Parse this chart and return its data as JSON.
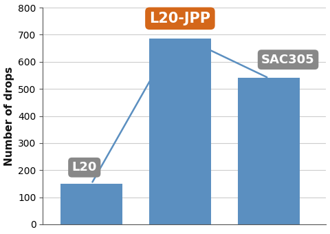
{
  "categories": [
    "L20",
    "L20-JPP",
    "SAC305"
  ],
  "values": [
    150,
    685,
    540
  ],
  "bar_color": "#5b8fc0",
  "ylabel": "Number of drops",
  "ylim": [
    0,
    800
  ],
  "yticks": [
    0,
    100,
    200,
    300,
    400,
    500,
    600,
    700,
    800
  ],
  "label_texts": [
    "L20",
    "L20-JPP",
    "SAC305"
  ],
  "label_bg_colors": [
    "#888888",
    "#d4671a",
    "#888888"
  ],
  "label_text_color": "#ffffff",
  "line_color": "#5b8fc0",
  "background_color": "#ffffff",
  "label_fontsizes": [
    13,
    15,
    13
  ],
  "bar_positions": [
    0,
    1,
    2
  ],
  "bar_width": 0.7
}
